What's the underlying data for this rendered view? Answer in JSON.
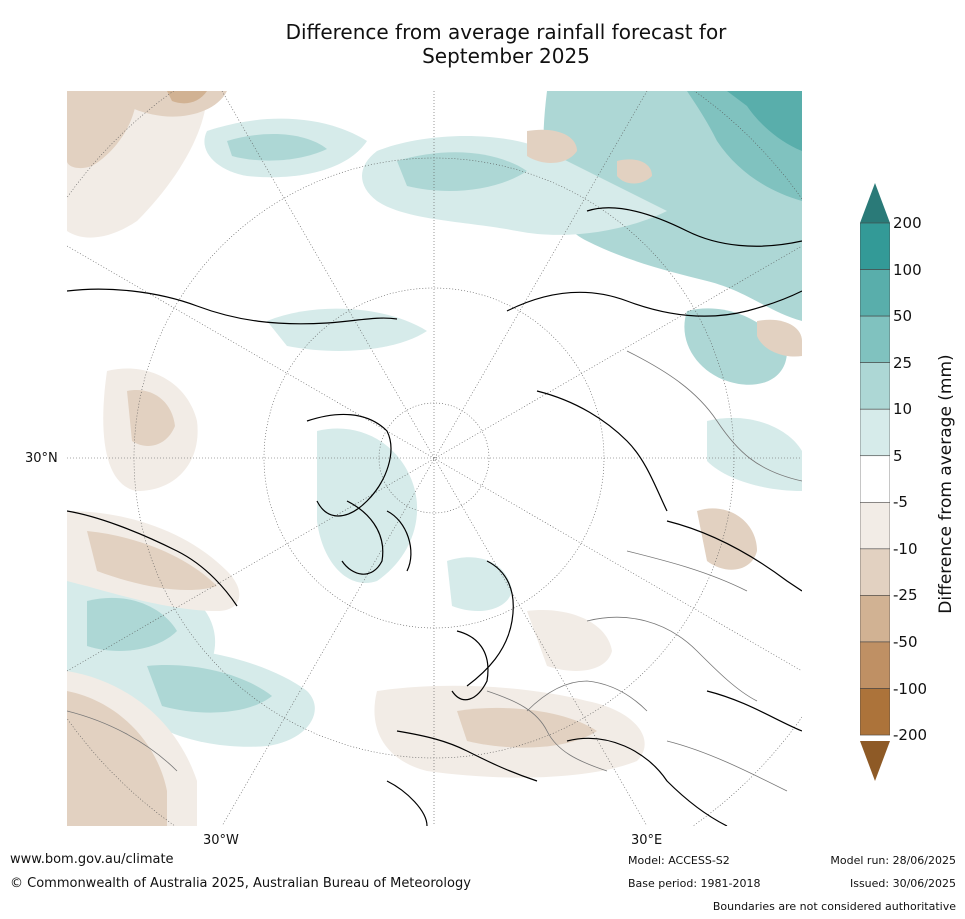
{
  "title_line1": "Difference from average rainfall forecast for",
  "title_line2": "September 2025",
  "map": {
    "lat_label": "30°N",
    "lon_labels": [
      "30°W",
      "30°E"
    ]
  },
  "colorbar": {
    "title": "Difference from average (mm)",
    "ticks": [
      "200",
      "100",
      "50",
      "25",
      "10",
      "5",
      "-5",
      "-10",
      "-25",
      "-50",
      "-100",
      "-200"
    ],
    "colors": {
      "above_200": "#2a7a78",
      "100_200": "#339a97",
      "50_100": "#59aeab",
      "25_50": "#80c2bf",
      "10_25": "#add7d5",
      "5_10": "#d6ebea",
      "-5_5": "#ffffff",
      "-10_-5": "#f2ece6",
      "-25_-10": "#e2d1c1",
      "-50_-25": "#d1b293",
      "-100_-50": "#bf9064",
      "-200_-100": "#ac733a",
      "below_-200": "#8e5a26"
    }
  },
  "footer": {
    "website": "www.bom.gov.au/climate",
    "copyright": "© Commonwealth of Australia 2025, Australian Bureau of Meteorology",
    "model": "Model: ACCESS-S2",
    "base_period": "Base period: 1981-2018",
    "model_run": "Model run: 28/06/2025",
    "issued": "Issued: 30/06/2025",
    "disclaimer": "Boundaries are not considered authoritative"
  }
}
